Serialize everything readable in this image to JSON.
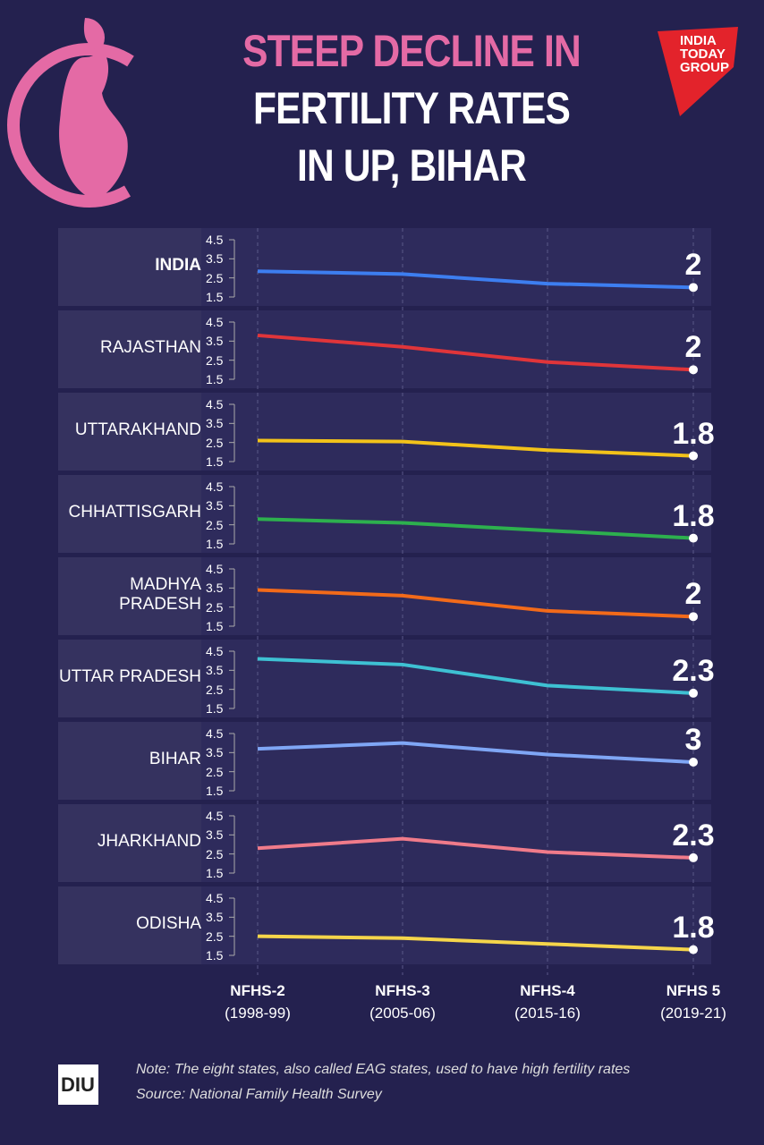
{
  "brand": "INDIA TODAY GROUP",
  "footer": {
    "logo": "DIU",
    "note": "Note: The eight states, also called EAG states, used to have high fertility rates",
    "source": "Source: National Family Health Survey"
  },
  "chart_data": {
    "type": "line",
    "title": [
      "STEEP DECLINE IN",
      "FERTILITY RATES",
      "IN UP, BIHAR"
    ],
    "categories": [
      "NFHS-2",
      "NFHS-3",
      "NFHS-4",
      "NFHS 5"
    ],
    "category_periods": [
      "(1998-99)",
      "(2005-06)",
      "(2015-16)",
      "(2019-21)"
    ],
    "ylim": [
      1.5,
      4.5
    ],
    "yticks": [
      1.5,
      2.5,
      3.5,
      4.5
    ],
    "series": [
      {
        "name": "INDIA",
        "color": "#3d7ef0",
        "values": [
          2.85,
          2.7,
          2.2,
          2
        ]
      },
      {
        "name": "RAJASTHAN",
        "color": "#e0353a",
        "values": [
          3.8,
          3.2,
          2.4,
          2
        ]
      },
      {
        "name": "UTTARAKHAND",
        "color": "#f2c21a",
        "values": [
          2.6,
          2.55,
          2.1,
          1.8
        ]
      },
      {
        "name": "CHHATTISGARH",
        "color": "#2db04e",
        "values": [
          2.8,
          2.6,
          2.2,
          1.8
        ]
      },
      {
        "name": "MADHYA PRADESH",
        "color": "#f26a1a",
        "values": [
          3.4,
          3.1,
          2.3,
          2
        ]
      },
      {
        "name": "UTTAR PRADESH",
        "color": "#3ec1d3",
        "values": [
          4.1,
          3.8,
          2.7,
          2.3
        ]
      },
      {
        "name": "BIHAR",
        "color": "#7fa6f5",
        "values": [
          3.7,
          4.0,
          3.4,
          3
        ]
      },
      {
        "name": "JHARKHAND",
        "color": "#f07b8a",
        "values": [
          2.8,
          3.3,
          2.6,
          2.3
        ]
      },
      {
        "name": "ODISHA",
        "color": "#f5d54a",
        "values": [
          2.5,
          2.4,
          2.1,
          1.8
        ]
      }
    ]
  }
}
